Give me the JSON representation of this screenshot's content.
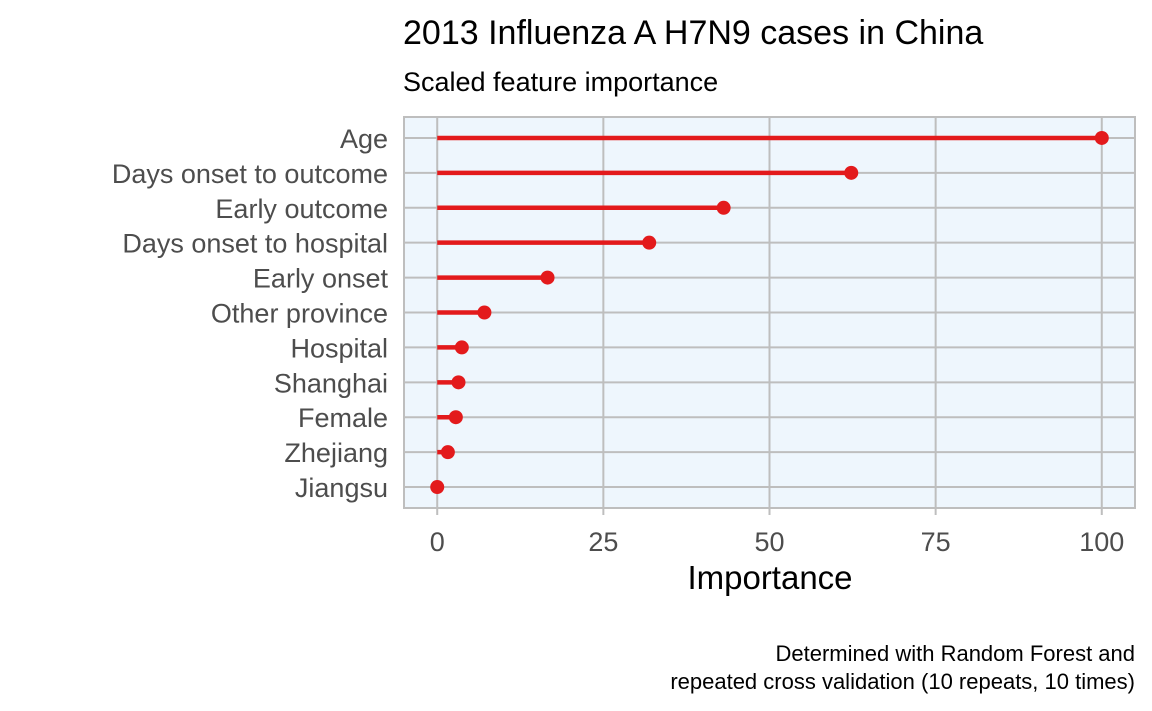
{
  "chart_data": {
    "type": "lollipop",
    "title": "2013 Influenza A H7N9 cases in China",
    "subtitle": "Scaled feature importance",
    "xlabel": "Importance",
    "ylabel": "",
    "xlim": [
      -5,
      105
    ],
    "xticks": [
      0,
      25,
      50,
      75,
      100
    ],
    "grid": true,
    "categories": [
      "Age",
      "Days onset to outcome",
      "Early outcome",
      "Days onset to hospital",
      "Early onset",
      "Other province",
      "Hospital",
      "Shanghai",
      "Female",
      "Zhejiang",
      "Jiangsu"
    ],
    "values": [
      100,
      62.3,
      43.1,
      31.9,
      16.6,
      7.1,
      3.7,
      3.2,
      2.8,
      1.6,
      0
    ],
    "caption": [
      "Determined with Random Forest and",
      "repeated cross validation (10 repeats, 10 times)"
    ]
  },
  "colors": {
    "panel_background": "#eef6fd",
    "grid": "#bebebe",
    "lollipop": "#e31a1c"
  }
}
